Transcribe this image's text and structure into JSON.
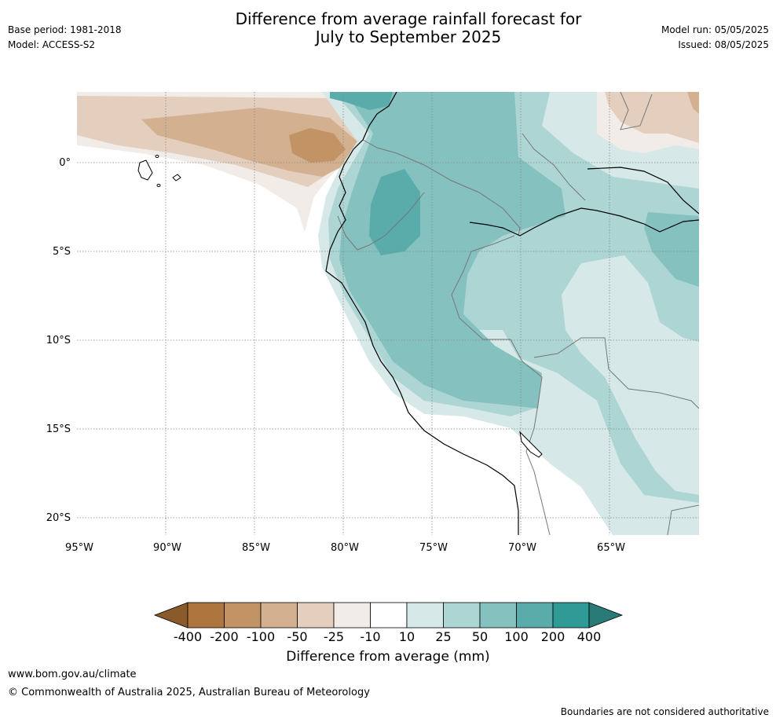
{
  "header": {
    "title_line1": "Difference from average rainfall forecast for",
    "title_line2": "July to September 2025",
    "base_period": "Base period: 1981-2018",
    "model": "Model: ACCESS-S2",
    "model_run": "Model run: 05/05/2025",
    "issued": "Issued: 08/05/2025"
  },
  "map": {
    "lat_labels": [
      "0°",
      "5°S",
      "10°S",
      "15°S",
      "20°S"
    ],
    "lon_labels": [
      "95°W",
      "90°W",
      "85°W",
      "80°W",
      "75°W",
      "70°W",
      "65°W"
    ]
  },
  "legend": {
    "title": "Difference from average (mm)",
    "tick_labels": [
      "-400",
      "-200",
      "-100",
      "-50",
      "-25",
      "-10",
      "10",
      "25",
      "50",
      "100",
      "200",
      "400"
    ],
    "colors": {
      "lt_-400": "#8a5a2b",
      "m400_m200": "#ad763e",
      "m200_m100": "#c29465",
      "m100_m50": "#d3b08f",
      "m50_m25": "#e4cfbe",
      "m25_m10": "#f1ece8",
      "m10_10": "#ffffff",
      "p10_25": "#d6e9e8",
      "p25_50": "#acd5d4",
      "p50_100": "#84c1bf",
      "p100_200": "#5aacaa",
      "p200_400": "#2f9a96",
      "gt_400": "#2a7b77"
    }
  },
  "footer": {
    "website": "www.bom.gov.au/climate",
    "copyright": "© Commonwealth of Australia 2025, Australian Bureau of Meteorology",
    "disclaimer": "Boundaries are not considered authoritative"
  }
}
